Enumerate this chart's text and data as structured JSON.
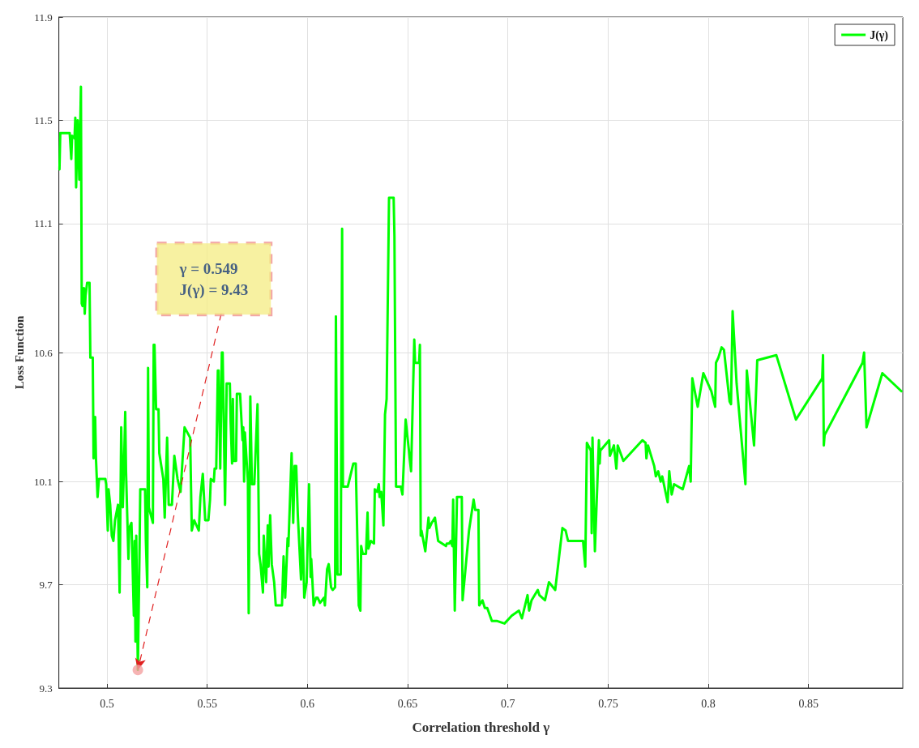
{
  "chart_data": {
    "type": "line",
    "xlabel": "Correlation threshold γ",
    "ylabel": "Loss Function",
    "xlim": [
      0.476,
      0.897
    ],
    "xticks": [
      0.5,
      0.55,
      0.6,
      0.65,
      0.7,
      0.75,
      0.8,
      0.85
    ],
    "ylim": [
      9.3,
      11.9
    ],
    "yticks": [
      9.3,
      9.7,
      10.1,
      10.6,
      11.1,
      11.5,
      11.9
    ],
    "grid": true,
    "legend": "top right",
    "marker": "none",
    "line_style": "solid",
    "annotations": [
      {
        "text": "γ = 0.549\nJ(γ) = 9.43",
        "x": 0.5154,
        "y": 9.37
      }
    ],
    "series": [
      {
        "name": "J(γ)",
        "color": "#00ff00",
        "x": [
          0.4763,
          0.4767,
          0.4814,
          0.4822,
          0.4826,
          0.4838,
          0.4842,
          0.4846,
          0.4854,
          0.4862,
          0.487,
          0.4874,
          0.4878,
          0.4885,
          0.4889,
          0.4893,
          0.4901,
          0.4913,
          0.4917,
          0.4929,
          0.4933,
          0.4941,
          0.4945,
          0.4953,
          0.496,
          0.4992,
          0.4996,
          0.5004,
          0.5008,
          0.5016,
          0.5024,
          0.5032,
          0.504,
          0.5055,
          0.5063,
          0.5071,
          0.5079,
          0.5087,
          0.5091,
          0.5095,
          0.5107,
          0.5111,
          0.5122,
          0.5126,
          0.5134,
          0.5138,
          0.5142,
          0.5146,
          0.5154,
          0.5162,
          0.5166,
          0.519,
          0.5194,
          0.5201,
          0.5205,
          0.5209,
          0.5229,
          0.5233,
          0.5237,
          0.5245,
          0.5257,
          0.5261,
          0.5281,
          0.5288,
          0.53,
          0.5308,
          0.5324,
          0.5336,
          0.5352,
          0.5367,
          0.5387,
          0.5415,
          0.5423,
          0.5435,
          0.5458,
          0.5466,
          0.5478,
          0.549,
          0.5506,
          0.5514,
          0.5518,
          0.5533,
          0.5537,
          0.5545,
          0.5553,
          0.5557,
          0.5565,
          0.5573,
          0.5577,
          0.5589,
          0.5597,
          0.5613,
          0.5617,
          0.5624,
          0.5628,
          0.5632,
          0.5644,
          0.5648,
          0.5664,
          0.5676,
          0.568,
          0.5684,
          0.5688,
          0.5703,
          0.5707,
          0.5715,
          0.5723,
          0.5735,
          0.5751,
          0.5759,
          0.5766,
          0.5778,
          0.5782,
          0.5794,
          0.5802,
          0.5806,
          0.5814,
          0.5822,
          0.5834,
          0.5842,
          0.5873,
          0.5881,
          0.5889,
          0.5901,
          0.5905,
          0.5921,
          0.5929,
          0.5936,
          0.5944,
          0.5952,
          0.5968,
          0.5976,
          0.5984,
          0.5996,
          0.6008,
          0.6016,
          0.6019,
          0.6031,
          0.6043,
          0.6051,
          0.6063,
          0.6083,
          0.6087,
          0.6098,
          0.6106,
          0.6118,
          0.6126,
          0.6138,
          0.6142,
          0.615,
          0.6166,
          0.6173,
          0.6177,
          0.6201,
          0.6229,
          0.6241,
          0.6256,
          0.6264,
          0.6268,
          0.6276,
          0.6292,
          0.63,
          0.6304,
          0.6316,
          0.6332,
          0.6336,
          0.6348,
          0.6356,
          0.636,
          0.6368,
          0.6379,
          0.6387,
          0.6395,
          0.6407,
          0.643,
          0.6434,
          0.6442,
          0.6466,
          0.6474,
          0.649,
          0.6517,
          0.6533,
          0.6537,
          0.6557,
          0.6561,
          0.6565,
          0.6569,
          0.6588,
          0.6604,
          0.6608,
          0.662,
          0.6636,
          0.6652,
          0.6691,
          0.6695,
          0.6707,
          0.6715,
          0.6723,
          0.6727,
          0.6735,
          0.6746,
          0.677,
          0.6774,
          0.6806,
          0.6829,
          0.6837,
          0.6853,
          0.6857,
          0.6873,
          0.6885,
          0.6897,
          0.692,
          0.6944,
          0.6983,
          0.7019,
          0.7055,
          0.707,
          0.7098,
          0.7106,
          0.7118,
          0.7149,
          0.7157,
          0.7185,
          0.7205,
          0.7236,
          0.7272,
          0.7288,
          0.73,
          0.7375,
          0.7386,
          0.7394,
          0.7414,
          0.7418,
          0.7422,
          0.7434,
          0.7454,
          0.7458,
          0.7461,
          0.7505,
          0.7509,
          0.7529,
          0.7541,
          0.7548,
          0.7576,
          0.7671,
          0.7687,
          0.7691,
          0.7699,
          0.773,
          0.7738,
          0.775,
          0.7762,
          0.777,
          0.7797,
          0.7805,
          0.7817,
          0.7829,
          0.7872,
          0.7904,
          0.7912,
          0.792,
          0.7947,
          0.7975,
          0.8015,
          0.8034,
          0.8038,
          0.805,
          0.8066,
          0.8078,
          0.8106,
          0.8113,
          0.8121,
          0.8141,
          0.8185,
          0.8192,
          0.8228,
          0.8244,
          0.8339,
          0.8437,
          0.8568,
          0.8572,
          0.8576,
          0.858,
          0.8769,
          0.8777,
          0.8789,
          0.8868,
          0.8963
        ],
        "values": [
          11.31,
          11.45,
          11.45,
          11.35,
          11.44,
          11.43,
          11.51,
          11.24,
          11.5,
          11.27,
          11.63,
          10.79,
          10.78,
          10.85,
          10.75,
          10.82,
          10.87,
          10.87,
          10.58,
          10.58,
          10.19,
          10.35,
          10.19,
          10.04,
          10.11,
          10.11,
          10.09,
          9.91,
          10.07,
          10.01,
          9.89,
          9.87,
          9.95,
          10.01,
          9.67,
          10.31,
          10.0,
          10.23,
          10.37,
          10.14,
          9.8,
          9.92,
          9.94,
          9.83,
          9.58,
          9.87,
          9.48,
          9.89,
          9.37,
          9.81,
          10.07,
          10.07,
          9.87,
          9.69,
          10.54,
          10.0,
          9.94,
          10.63,
          10.63,
          10.38,
          10.38,
          10.21,
          10.11,
          9.96,
          10.27,
          10.01,
          10.01,
          10.2,
          10.11,
          10.06,
          10.31,
          10.27,
          9.91,
          9.95,
          9.91,
          10.04,
          10.13,
          9.95,
          9.95,
          10.03,
          10.11,
          10.1,
          10.15,
          10.15,
          10.53,
          10.53,
          10.15,
          10.6,
          10.6,
          10.01,
          10.48,
          10.48,
          10.33,
          10.17,
          10.42,
          10.18,
          10.18,
          10.44,
          10.44,
          10.26,
          10.31,
          10.1,
          10.29,
          10.1,
          9.59,
          10.43,
          10.09,
          10.09,
          10.4,
          9.82,
          9.78,
          9.67,
          9.89,
          9.71,
          9.93,
          9.77,
          9.97,
          9.78,
          9.71,
          9.62,
          9.62,
          9.81,
          9.65,
          9.88,
          9.85,
          10.21,
          9.94,
          10.16,
          10.16,
          9.97,
          9.72,
          9.92,
          9.65,
          9.71,
          10.09,
          9.73,
          9.8,
          9.62,
          9.65,
          9.65,
          9.63,
          9.65,
          9.62,
          9.76,
          9.78,
          9.69,
          9.68,
          9.69,
          10.74,
          9.74,
          9.74,
          11.08,
          10.08,
          10.08,
          10.17,
          10.17,
          9.62,
          9.6,
          9.85,
          9.82,
          9.82,
          9.98,
          9.84,
          9.87,
          9.86,
          10.07,
          10.06,
          10.09,
          10.04,
          10.06,
          9.93,
          10.36,
          10.42,
          11.2,
          11.2,
          11.05,
          10.08,
          10.08,
          10.05,
          10.34,
          10.14,
          10.65,
          10.56,
          10.56,
          10.63,
          9.89,
          9.91,
          9.83,
          9.96,
          9.92,
          9.94,
          9.96,
          9.87,
          9.85,
          9.86,
          9.86,
          9.87,
          9.85,
          10.03,
          9.6,
          10.04,
          10.04,
          9.64,
          9.91,
          10.03,
          9.99,
          9.99,
          9.62,
          9.64,
          9.61,
          9.61,
          9.56,
          9.56,
          9.55,
          9.58,
          9.6,
          9.57,
          9.66,
          9.6,
          9.64,
          9.68,
          9.66,
          9.64,
          9.71,
          9.68,
          9.92,
          9.91,
          9.87,
          9.87,
          9.77,
          10.25,
          10.22,
          9.9,
          10.27,
          9.83,
          10.26,
          10.17,
          10.22,
          10.26,
          10.2,
          10.24,
          10.15,
          10.24,
          10.18,
          10.26,
          10.25,
          10.19,
          10.24,
          10.16,
          10.12,
          10.14,
          10.1,
          10.12,
          10.02,
          10.14,
          10.05,
          10.09,
          10.07,
          10.16,
          10.1,
          10.5,
          10.39,
          10.52,
          10.45,
          10.39,
          10.56,
          10.58,
          10.62,
          10.61,
          10.41,
          10.4,
          10.76,
          10.48,
          10.09,
          10.53,
          10.24,
          10.57,
          10.59,
          10.34,
          10.5,
          10.59,
          10.24,
          10.28,
          10.56,
          10.6,
          10.31,
          10.52,
          10.45
        ]
      }
    ]
  }
}
